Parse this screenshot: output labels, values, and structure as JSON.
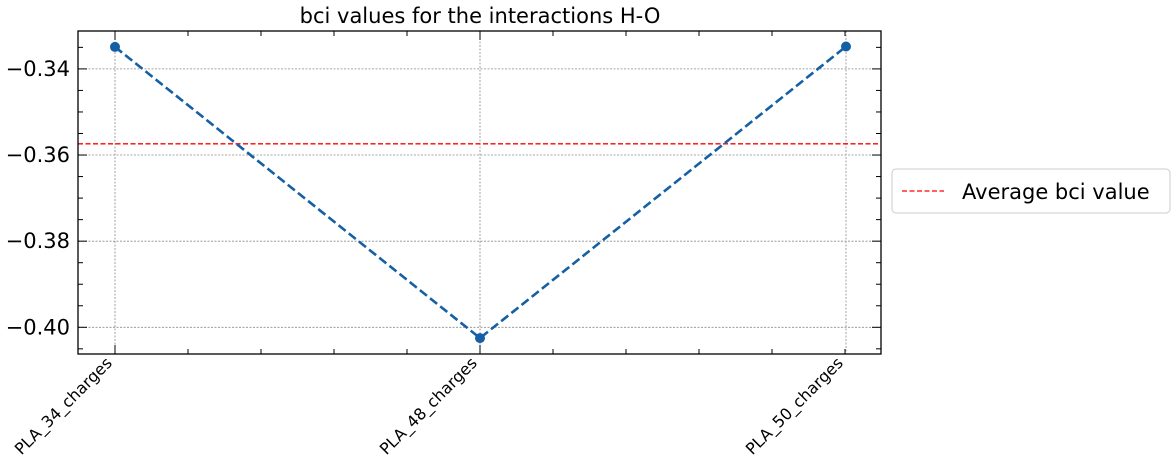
{
  "chart_data": {
    "type": "line",
    "title": "bci values for the interactions H-O",
    "xlabel": "",
    "ylabel": "",
    "categories": [
      "PLA_34_charges",
      "PLA_48_charges",
      "PLA_50_charges"
    ],
    "series": [
      {
        "values": [
          -0.3349,
          -0.4025,
          -0.3348
        ],
        "color": "#1560a4",
        "style": "dashed",
        "marker": "circle"
      }
    ],
    "reference_lines": [
      {
        "label": "Average bci value",
        "value": -0.3574,
        "color": "#ff0000",
        "style": "dashed"
      }
    ],
    "ylim": [
      -0.4062,
      -0.3312
    ],
    "yticks": [
      -0.4,
      -0.38,
      -0.36,
      -0.34
    ],
    "ytick_labels": [
      "−0.40",
      "−0.38",
      "−0.36",
      "−0.34"
    ],
    "grid": true,
    "legend": {
      "placement": "right-outside",
      "entries": [
        "Average bci value"
      ]
    }
  }
}
